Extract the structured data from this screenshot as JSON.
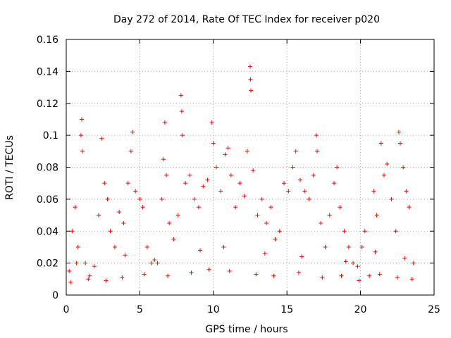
{
  "chart_data": {
    "type": "scatter",
    "title": "Day 272 of 2014, Rate Of TEC Index for receiver p020",
    "xlabel": "GPS time / hours",
    "ylabel": "ROTI / TECUs",
    "xlim": [
      0,
      25
    ],
    "ylim": [
      0,
      0.16
    ],
    "xticks": [
      "0",
      "5",
      "10",
      "15",
      "20",
      "25"
    ],
    "yticks": [
      "0",
      "0.02",
      "0.04",
      "0.06",
      "0.08",
      "0.1",
      "0.12",
      "0.14",
      "0.16"
    ],
    "grid": true,
    "marker": "+",
    "color": "#ff0000",
    "series": [
      {
        "name": "ROTI",
        "points": [
          [
            0.2,
            0.015
          ],
          [
            0.4,
            0.04
          ],
          [
            0.6,
            0.055
          ],
          [
            0.8,
            0.03
          ],
          [
            1.0,
            0.1
          ],
          [
            1.05,
            0.11
          ],
          [
            1.1,
            0.09
          ],
          [
            1.3,
            0.02
          ],
          [
            1.6,
            0.012
          ],
          [
            1.9,
            0.018
          ],
          [
            2.2,
            0.05
          ],
          [
            2.4,
            0.098
          ],
          [
            2.6,
            0.07
          ],
          [
            2.8,
            0.06
          ],
          [
            3.0,
            0.04
          ],
          [
            3.3,
            0.03
          ],
          [
            3.6,
            0.052
          ],
          [
            3.9,
            0.045
          ],
          [
            4.2,
            0.07
          ],
          [
            4.4,
            0.09
          ],
          [
            4.5,
            0.102
          ],
          [
            4.7,
            0.065
          ],
          [
            5.0,
            0.06
          ],
          [
            5.2,
            0.055
          ],
          [
            5.5,
            0.03
          ],
          [
            5.8,
            0.02
          ],
          [
            6.2,
            0.02
          ],
          [
            6.5,
            0.06
          ],
          [
            6.6,
            0.085
          ],
          [
            6.7,
            0.108
          ],
          [
            6.8,
            0.075
          ],
          [
            7.0,
            0.045
          ],
          [
            7.3,
            0.035
          ],
          [
            7.6,
            0.05
          ],
          [
            7.8,
            0.125
          ],
          [
            7.85,
            0.115
          ],
          [
            7.9,
            0.1
          ],
          [
            8.1,
            0.07
          ],
          [
            8.4,
            0.075
          ],
          [
            8.7,
            0.06
          ],
          [
            9.0,
            0.055
          ],
          [
            9.3,
            0.068
          ],
          [
            9.6,
            0.072
          ],
          [
            9.9,
            0.108
          ],
          [
            10.0,
            0.095
          ],
          [
            10.2,
            0.08
          ],
          [
            10.5,
            0.065
          ],
          [
            10.8,
            0.088
          ],
          [
            11.0,
            0.092
          ],
          [
            11.2,
            0.075
          ],
          [
            11.5,
            0.055
          ],
          [
            11.8,
            0.07
          ],
          [
            12.1,
            0.062
          ],
          [
            12.3,
            0.09
          ],
          [
            12.5,
            0.143
          ],
          [
            12.52,
            0.135
          ],
          [
            12.55,
            0.128
          ],
          [
            12.7,
            0.078
          ],
          [
            13.0,
            0.05
          ],
          [
            13.3,
            0.06
          ],
          [
            13.6,
            0.045
          ],
          [
            13.9,
            0.055
          ],
          [
            14.2,
            0.035
          ],
          [
            14.5,
            0.04
          ],
          [
            14.8,
            0.07
          ],
          [
            15.1,
            0.065
          ],
          [
            15.4,
            0.08
          ],
          [
            15.6,
            0.09
          ],
          [
            15.9,
            0.072
          ],
          [
            16.2,
            0.065
          ],
          [
            16.5,
            0.06
          ],
          [
            16.8,
            0.075
          ],
          [
            17.0,
            0.1
          ],
          [
            17.05,
            0.09
          ],
          [
            17.3,
            0.045
          ],
          [
            17.6,
            0.03
          ],
          [
            17.9,
            0.05
          ],
          [
            18.2,
            0.07
          ],
          [
            18.4,
            0.08
          ],
          [
            18.6,
            0.055
          ],
          [
            18.9,
            0.04
          ],
          [
            19.2,
            0.03
          ],
          [
            19.5,
            0.02
          ],
          [
            19.8,
            0.018
          ],
          [
            20.1,
            0.03
          ],
          [
            20.3,
            0.04
          ],
          [
            20.6,
            0.012
          ],
          [
            20.9,
            0.065
          ],
          [
            21.1,
            0.05
          ],
          [
            21.4,
            0.095
          ],
          [
            21.6,
            0.075
          ],
          [
            21.8,
            0.082
          ],
          [
            22.1,
            0.06
          ],
          [
            22.4,
            0.04
          ],
          [
            22.6,
            0.102
          ],
          [
            22.7,
            0.095
          ],
          [
            22.9,
            0.08
          ],
          [
            23.1,
            0.065
          ],
          [
            23.3,
            0.055
          ],
          [
            23.6,
            0.02
          ],
          [
            0.3,
            0.008
          ],
          [
            1.5,
            0.01
          ],
          [
            2.7,
            0.009
          ],
          [
            3.8,
            0.011
          ],
          [
            5.3,
            0.013
          ],
          [
            6.9,
            0.012
          ],
          [
            8.5,
            0.014
          ],
          [
            9.7,
            0.016
          ],
          [
            11.1,
            0.015
          ],
          [
            12.9,
            0.013
          ],
          [
            14.1,
            0.012
          ],
          [
            15.8,
            0.014
          ],
          [
            17.4,
            0.011
          ],
          [
            18.7,
            0.012
          ],
          [
            19.9,
            0.009
          ],
          [
            21.3,
            0.013
          ],
          [
            22.5,
            0.011
          ],
          [
            23.5,
            0.01
          ],
          [
            0.7,
            0.02
          ],
          [
            4.0,
            0.025
          ],
          [
            6.0,
            0.022
          ],
          [
            9.1,
            0.028
          ],
          [
            10.7,
            0.03
          ],
          [
            13.5,
            0.026
          ],
          [
            16.0,
            0.024
          ],
          [
            19.0,
            0.021
          ],
          [
            21.0,
            0.027
          ],
          [
            23.0,
            0.023
          ]
        ]
      }
    ]
  }
}
